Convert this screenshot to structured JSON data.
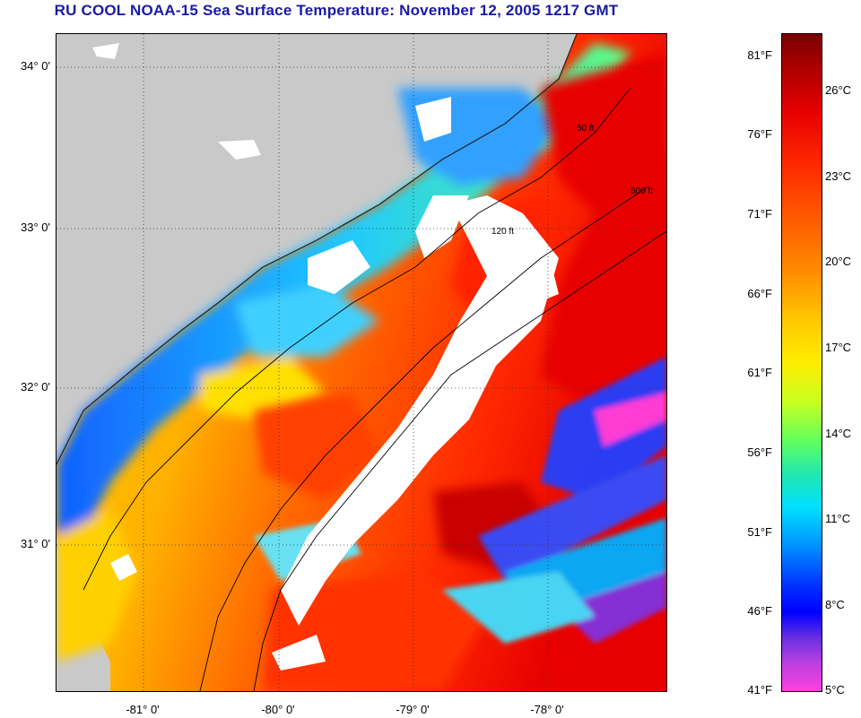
{
  "title": "RU COOL  NOAA-15  Sea Surface Temperature:  November 12, 2005 1217 GMT",
  "lat_labels": [
    "34° 0'",
    "33° 0'",
    "32° 0'",
    "31° 0'"
  ],
  "lon_labels": [
    "-81° 0'",
    "-80° 0'",
    "-79° 0'",
    "-78° 0'"
  ],
  "contour_labels": [
    "50 ft",
    "120 ft",
    "600 ft"
  ],
  "colorbar": {
    "fahrenheit": [
      "81°F",
      "76°F",
      "71°F",
      "66°F",
      "61°F",
      "56°F",
      "51°F",
      "46°F",
      "41°F"
    ],
    "celsius": [
      "26°C",
      "23°C",
      "20°C",
      "17°C",
      "14°C",
      "11°C",
      "8°C",
      "5°C"
    ]
  },
  "colors": {
    "land": "#c9c9c9",
    "cloud": "#ffffff",
    "cold": "#0000ff",
    "warm": "#ff0000",
    "title": "#1a1aa6"
  }
}
